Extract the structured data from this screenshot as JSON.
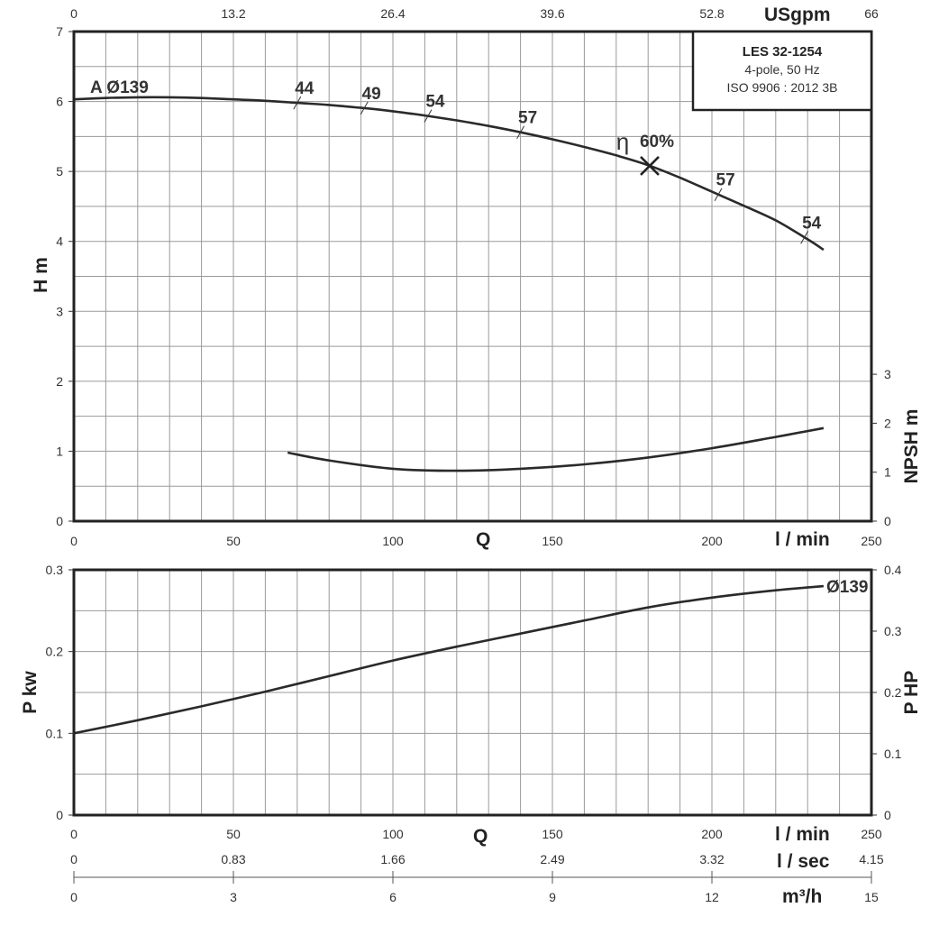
{
  "chart_data": [
    {
      "type": "line",
      "name": "head-chart",
      "xlabel": "Q",
      "x_unit": "l / min",
      "xlim": [
        0,
        250
      ],
      "x_ticks": [
        0,
        50,
        100,
        150,
        200,
        250
      ],
      "top_x_unit": "USgpm",
      "top_x_ticks": [
        "0",
        "13.2",
        "26.4",
        "39.6",
        "52.8",
        "66"
      ],
      "ylabel": "H m",
      "ylim": [
        0,
        7
      ],
      "y_ticks": [
        0,
        1,
        2,
        3,
        4,
        5,
        6,
        7
      ],
      "y2label": "NPSH m",
      "y2lim": [
        0,
        10
      ],
      "y2_ticks": [
        0,
        1,
        2,
        3
      ],
      "grid": true,
      "legend_box": {
        "title": "LES 32-1254",
        "line1": "4-pole, 50 Hz",
        "line2": "ISO 9906 : 2012 3B"
      },
      "series": [
        {
          "name": "A Ø139",
          "axis": "left",
          "x": [
            0,
            10,
            20,
            30,
            40,
            50,
            60,
            70,
            80,
            90,
            100,
            110,
            120,
            130,
            140,
            150,
            160,
            170,
            180,
            190,
            200,
            210,
            220,
            230,
            235
          ],
          "y": [
            6.03,
            6.05,
            6.06,
            6.06,
            6.05,
            6.03,
            6.01,
            5.98,
            5.95,
            5.91,
            5.86,
            5.8,
            5.73,
            5.65,
            5.56,
            5.46,
            5.35,
            5.23,
            5.09,
            4.91,
            4.71,
            4.51,
            4.3,
            4.03,
            3.88
          ]
        },
        {
          "name": "NPSH",
          "axis": "right",
          "x": [
            67,
            80,
            100,
            120,
            140,
            160,
            180,
            200,
            220,
            235
          ],
          "y": [
            1.4,
            1.24,
            1.07,
            1.03,
            1.07,
            1.16,
            1.3,
            1.49,
            1.72,
            1.9
          ]
        }
      ],
      "efficiency_marks": [
        {
          "label": "44",
          "q": 70
        },
        {
          "label": "49",
          "q": 91
        },
        {
          "label": "54",
          "q": 111
        },
        {
          "label": "57",
          "q": 140
        },
        {
          "label": "57",
          "q": 202
        },
        {
          "label": "54",
          "q": 229
        }
      ],
      "bep": {
        "symbol": "η",
        "label": "60%",
        "q": 180.5,
        "h": 5.08
      }
    },
    {
      "type": "line",
      "name": "power-chart",
      "xlabel": "Q",
      "x_unit": "l / min",
      "xlim": [
        0,
        250
      ],
      "x_ticks": [
        0,
        50,
        100,
        150,
        200,
        250
      ],
      "ylabel": "P kw",
      "ylim": [
        0,
        0.3
      ],
      "y_ticks": [
        "0",
        "0.1",
        "0.2",
        "0.3"
      ],
      "y2label": "P HP",
      "y2lim": [
        0,
        0.4
      ],
      "y2_ticks": [
        "0",
        "0.1",
        "0.2",
        "0.3",
        "0.4"
      ],
      "grid": true,
      "series": [
        {
          "name": "Ø139",
          "x": [
            0,
            20,
            40,
            60,
            80,
            100,
            120,
            140,
            160,
            180,
            200,
            220,
            235
          ],
          "y": [
            0.1,
            0.116,
            0.133,
            0.151,
            0.17,
            0.189,
            0.206,
            0.222,
            0.238,
            0.254,
            0.266,
            0.275,
            0.28
          ]
        }
      ]
    }
  ],
  "extra_axes": [
    {
      "unit": "l / sec",
      "ticks": [
        "0",
        "0.83",
        "1.66",
        "2.49",
        "3.32",
        "4.15"
      ]
    },
    {
      "unit": "m³/h",
      "ticks": [
        "0",
        "3",
        "6",
        "9",
        "12",
        "15"
      ]
    }
  ]
}
